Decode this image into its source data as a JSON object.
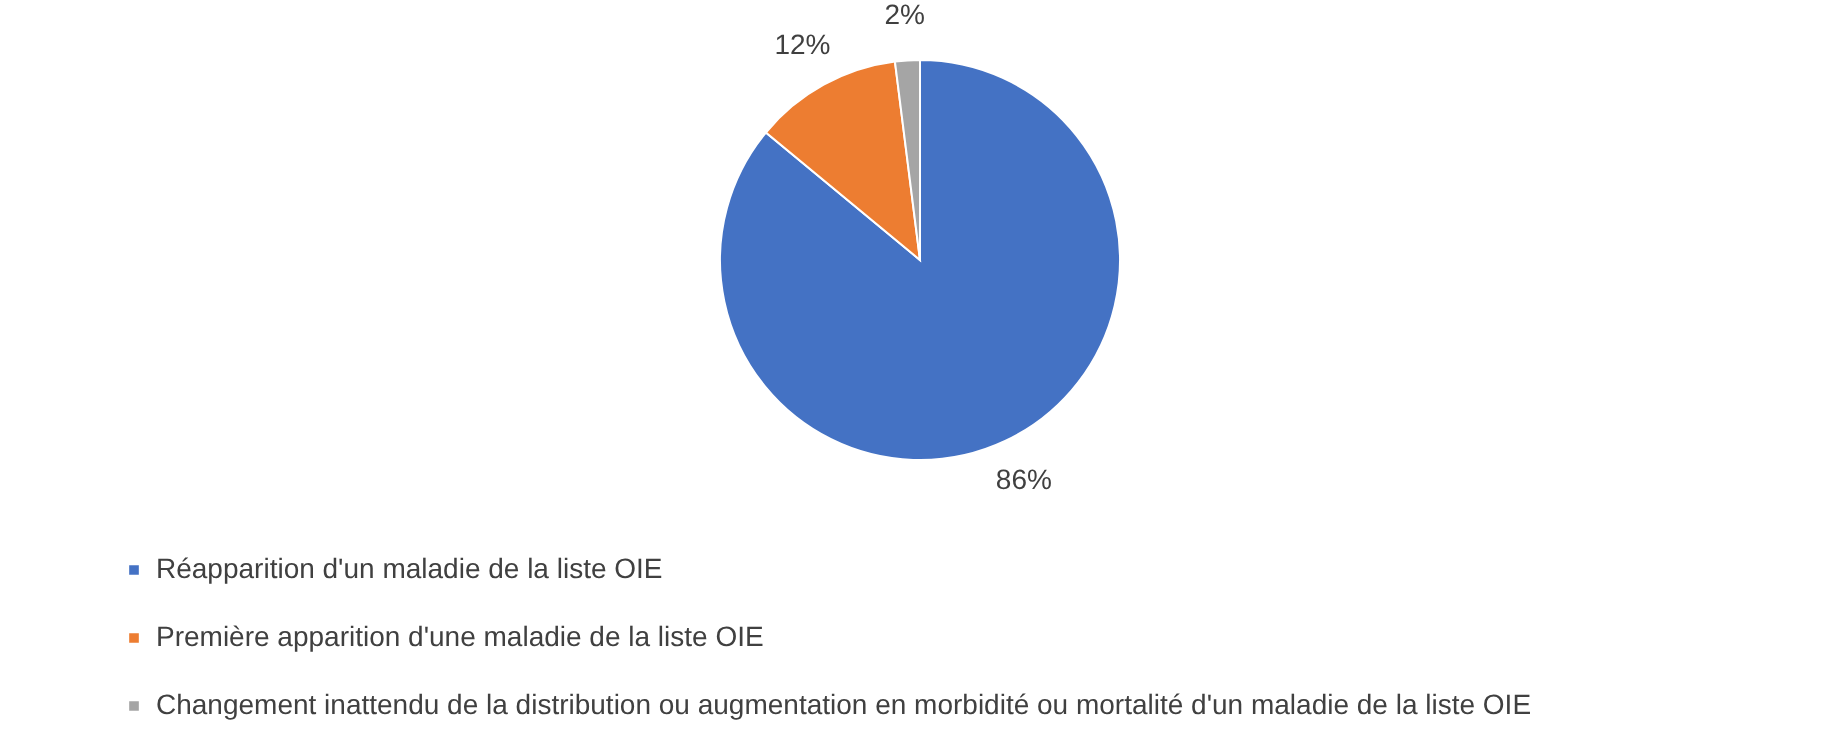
{
  "chart_data": {
    "type": "pie",
    "categories": [
      "Réapparition d'un maladie de la liste OIE",
      "Première apparition d'une maladie de la liste OIE",
      "Changement inattendu de la distribution ou augmentation en morbidité ou mortalité d'un maladie de la liste OIE"
    ],
    "values": [
      86,
      12,
      2
    ],
    "colors": [
      "#4472c4",
      "#ed7d31",
      "#a5a5a5"
    ],
    "value_labels": [
      "86%",
      "12%",
      "2%"
    ],
    "legend": "bottom left"
  }
}
